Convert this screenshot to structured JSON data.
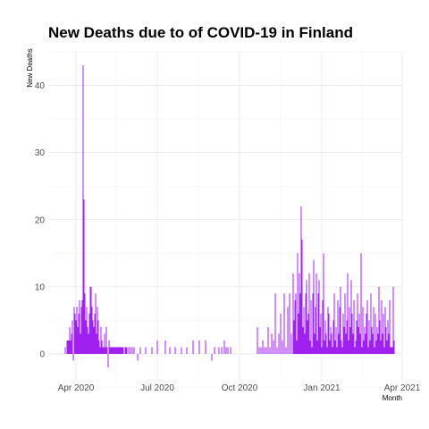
{
  "chart_data": {
    "type": "bar",
    "title": "New Deaths due to of COVID-19 in Finland",
    "xlabel": "Month",
    "ylabel": "New Deaths",
    "x_ticks": [
      "Apr 2020",
      "Jul 2020",
      "Oct 2020",
      "Jan 2021",
      "Apr 2021"
    ],
    "y_ticks": [
      0,
      10,
      20,
      30,
      40
    ],
    "xlim": [
      "2020-03-01",
      "2021-04-01"
    ],
    "ylim": [
      -4,
      45
    ],
    "grid": true,
    "bar_color": "#a020f0",
    "x": [
      "2020-03-20",
      "2020-03-22",
      "2020-03-23",
      "2020-03-24",
      "2020-03-25",
      "2020-03-26",
      "2020-03-27",
      "2020-03-28",
      "2020-03-29",
      "2020-03-30",
      "2020-03-31",
      "2020-04-01",
      "2020-04-02",
      "2020-04-03",
      "2020-04-04",
      "2020-04-05",
      "2020-04-06",
      "2020-04-07",
      "2020-04-08",
      "2020-04-09",
      "2020-04-10",
      "2020-04-11",
      "2020-04-12",
      "2020-04-13",
      "2020-04-14",
      "2020-04-15",
      "2020-04-16",
      "2020-04-17",
      "2020-04-18",
      "2020-04-19",
      "2020-04-20",
      "2020-04-21",
      "2020-04-22",
      "2020-04-23",
      "2020-04-24",
      "2020-04-25",
      "2020-04-26",
      "2020-04-27",
      "2020-04-28",
      "2020-04-29",
      "2020-04-30",
      "2020-05-01",
      "2020-05-02",
      "2020-05-03",
      "2020-05-04",
      "2020-05-05",
      "2020-05-06",
      "2020-05-07",
      "2020-05-08",
      "2020-05-09",
      "2020-05-10",
      "2020-05-11",
      "2020-05-12",
      "2020-05-13",
      "2020-05-14",
      "2020-05-15",
      "2020-05-16",
      "2020-05-17",
      "2020-05-18",
      "2020-05-19",
      "2020-05-20",
      "2020-05-21",
      "2020-05-22",
      "2020-05-23",
      "2020-05-24",
      "2020-05-26",
      "2020-05-27",
      "2020-05-28",
      "2020-05-30",
      "2020-06-01",
      "2020-06-03",
      "2020-06-05",
      "2020-06-09",
      "2020-06-12",
      "2020-06-18",
      "2020-06-25",
      "2020-07-01",
      "2020-07-10",
      "2020-07-15",
      "2020-07-21",
      "2020-07-28",
      "2020-08-03",
      "2020-08-10",
      "2020-08-17",
      "2020-08-24",
      "2020-08-31",
      "2020-09-03",
      "2020-09-08",
      "2020-09-11",
      "2020-09-14",
      "2020-09-16",
      "2020-09-18",
      "2020-09-21",
      "2020-10-21",
      "2020-10-23",
      "2020-10-25",
      "2020-10-27",
      "2020-10-29",
      "2020-10-31",
      "2020-11-02",
      "2020-11-04",
      "2020-11-06",
      "2020-11-08",
      "2020-11-10",
      "2020-11-12",
      "2020-11-14",
      "2020-11-16",
      "2020-11-18",
      "2020-11-20",
      "2020-11-22",
      "2020-11-24",
      "2020-11-26",
      "2020-11-28",
      "2020-11-30",
      "2020-12-01",
      "2020-12-02",
      "2020-12-03",
      "2020-12-04",
      "2020-12-05",
      "2020-12-06",
      "2020-12-07",
      "2020-12-08",
      "2020-12-09",
      "2020-12-10",
      "2020-12-11",
      "2020-12-12",
      "2020-12-13",
      "2020-12-14",
      "2020-12-15",
      "2020-12-16",
      "2020-12-17",
      "2020-12-18",
      "2020-12-19",
      "2020-12-20",
      "2020-12-21",
      "2020-12-22",
      "2020-12-23",
      "2020-12-24",
      "2020-12-25",
      "2020-12-26",
      "2020-12-27",
      "2020-12-28",
      "2020-12-29",
      "2020-12-30",
      "2020-12-31",
      "2021-01-01",
      "2021-01-02",
      "2021-01-03",
      "2021-01-04",
      "2021-01-05",
      "2021-01-06",
      "2021-01-07",
      "2021-01-08",
      "2021-01-09",
      "2021-01-10",
      "2021-01-11",
      "2021-01-12",
      "2021-01-13",
      "2021-01-14",
      "2021-01-15",
      "2021-01-16",
      "2021-01-17",
      "2021-01-18",
      "2021-01-19",
      "2021-01-20",
      "2021-01-21",
      "2021-01-22",
      "2021-01-23",
      "2021-01-24",
      "2021-01-25",
      "2021-01-26",
      "2021-01-27",
      "2021-01-28",
      "2021-01-29",
      "2021-01-30",
      "2021-01-31",
      "2021-02-01",
      "2021-02-02",
      "2021-02-03",
      "2021-02-04",
      "2021-02-05",
      "2021-02-06",
      "2021-02-07",
      "2021-02-08",
      "2021-02-09",
      "2021-02-10",
      "2021-02-11",
      "2021-02-12",
      "2021-02-13",
      "2021-02-14",
      "2021-02-15",
      "2021-02-16",
      "2021-02-17",
      "2021-02-18",
      "2021-02-19",
      "2021-02-20",
      "2021-02-21",
      "2021-02-22",
      "2021-02-23",
      "2021-02-24",
      "2021-02-25",
      "2021-02-26",
      "2021-02-27",
      "2021-02-28",
      "2021-03-01",
      "2021-03-02",
      "2021-03-03",
      "2021-03-04",
      "2021-03-05",
      "2021-03-06",
      "2021-03-07",
      "2021-03-08",
      "2021-03-09",
      "2021-03-10",
      "2021-03-11",
      "2021-03-12",
      "2021-03-13",
      "2021-03-14",
      "2021-03-15",
      "2021-03-16",
      "2021-03-17",
      "2021-03-18",
      "2021-03-19",
      "2021-03-20",
      "2021-03-21",
      "2021-03-22",
      "2021-03-23"
    ],
    "values": [
      1,
      2,
      2,
      2,
      4,
      2,
      3,
      5,
      -1,
      7,
      6,
      5,
      7,
      4,
      6,
      8,
      3,
      7,
      8,
      43,
      23,
      9,
      5,
      7,
      4,
      3,
      6,
      10,
      10,
      7,
      5,
      4,
      6,
      9,
      3,
      7,
      5,
      2,
      1,
      4,
      2,
      1,
      1,
      3,
      1,
      4,
      1,
      -2,
      2,
      1,
      1,
      1,
      1,
      1,
      1,
      1,
      1,
      1,
      1,
      1,
      1,
      1,
      1,
      1,
      1,
      1,
      1,
      1,
      1,
      1,
      1,
      1,
      -1,
      1,
      1,
      1,
      2,
      2,
      1,
      1,
      1,
      1,
      2,
      2,
      2,
      -1,
      1,
      1,
      1,
      2,
      1,
      1,
      1,
      4,
      1,
      1,
      2,
      1,
      1,
      4,
      1,
      3,
      2,
      9,
      1,
      3,
      6,
      2,
      9,
      1,
      7,
      9,
      3,
      12,
      5,
      8,
      9,
      2,
      15,
      6,
      12,
      9,
      22,
      17,
      4,
      7,
      3,
      9,
      11,
      5,
      6,
      12,
      2,
      8,
      1,
      9,
      14,
      3,
      7,
      12,
      2,
      9,
      11,
      4,
      6,
      1,
      8,
      15,
      2,
      5,
      3,
      1,
      7,
      6,
      2,
      4,
      3,
      1,
      5,
      9,
      2,
      4,
      1,
      8,
      3,
      7,
      10,
      2,
      1,
      6,
      4,
      9,
      3,
      5,
      12,
      2,
      7,
      4,
      11,
      6,
      3,
      8,
      1,
      2,
      5,
      9,
      4,
      6,
      3,
      15,
      1,
      7,
      2,
      4,
      3,
      6,
      8,
      1,
      5,
      2,
      9,
      4,
      3,
      7,
      1,
      6,
      2,
      4,
      3,
      10,
      5,
      2,
      8,
      3,
      6,
      1,
      7,
      4,
      2,
      5,
      3,
      8,
      1,
      1,
      1,
      10,
      2
    ]
  }
}
